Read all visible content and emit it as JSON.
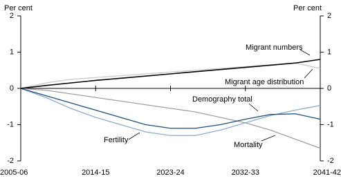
{
  "chart_data": {
    "type": "line",
    "y_label": "Per cent",
    "y2_label": "Per cent",
    "x": [
      2005,
      2008,
      2011,
      2014,
      2017,
      2020,
      2023,
      2026,
      2029,
      2032,
      2035,
      2038,
      2041
    ],
    "xlim": [
      2005,
      2041
    ],
    "xticks": [
      {
        "value": 2005,
        "label": "2005-06"
      },
      {
        "value": 2014,
        "label": "2014-15"
      },
      {
        "value": 2023,
        "label": "2023-24"
      },
      {
        "value": 2032,
        "label": "2032-33"
      },
      {
        "value": 2041,
        "label": "2041-42"
      }
    ],
    "ylim": [
      -2,
      2
    ],
    "yticks": [
      2,
      1,
      0,
      -1,
      -2
    ],
    "y2lim": [
      -2,
      2
    ],
    "y2ticks": [
      2,
      1,
      0,
      -1,
      -2
    ],
    "series": [
      {
        "name": "Migrant numbers",
        "color": "#000000",
        "values": [
          0,
          0.08,
          0.15,
          0.22,
          0.28,
          0.34,
          0.4,
          0.46,
          0.52,
          0.58,
          0.64,
          0.7,
          0.8
        ]
      },
      {
        "name": "Migrant age distribution",
        "color": "#c8c8c8",
        "values": [
          0,
          0.15,
          0.25,
          0.3,
          0.35,
          0.4,
          0.45,
          0.5,
          0.55,
          0.6,
          0.65,
          0.7,
          0.55
        ]
      },
      {
        "name": "Demography total",
        "color": "#1f4e79",
        "values": [
          0,
          -0.2,
          -0.4,
          -0.6,
          -0.8,
          -1.0,
          -1.1,
          -1.1,
          -1.0,
          -0.85,
          -0.72,
          -0.7,
          -0.85
        ]
      },
      {
        "name": "Fertility",
        "color": "#8fa9c8",
        "values": [
          0,
          -0.25,
          -0.55,
          -0.8,
          -1.0,
          -1.2,
          -1.3,
          -1.3,
          -1.15,
          -0.95,
          -0.75,
          -0.6,
          -0.47
        ]
      },
      {
        "name": "Mortality",
        "color": "#a0a0a0",
        "values": [
          0,
          -0.05,
          -0.15,
          -0.25,
          -0.35,
          -0.45,
          -0.55,
          -0.65,
          -0.8,
          -0.95,
          -1.15,
          -1.4,
          -1.65
        ]
      }
    ]
  }
}
